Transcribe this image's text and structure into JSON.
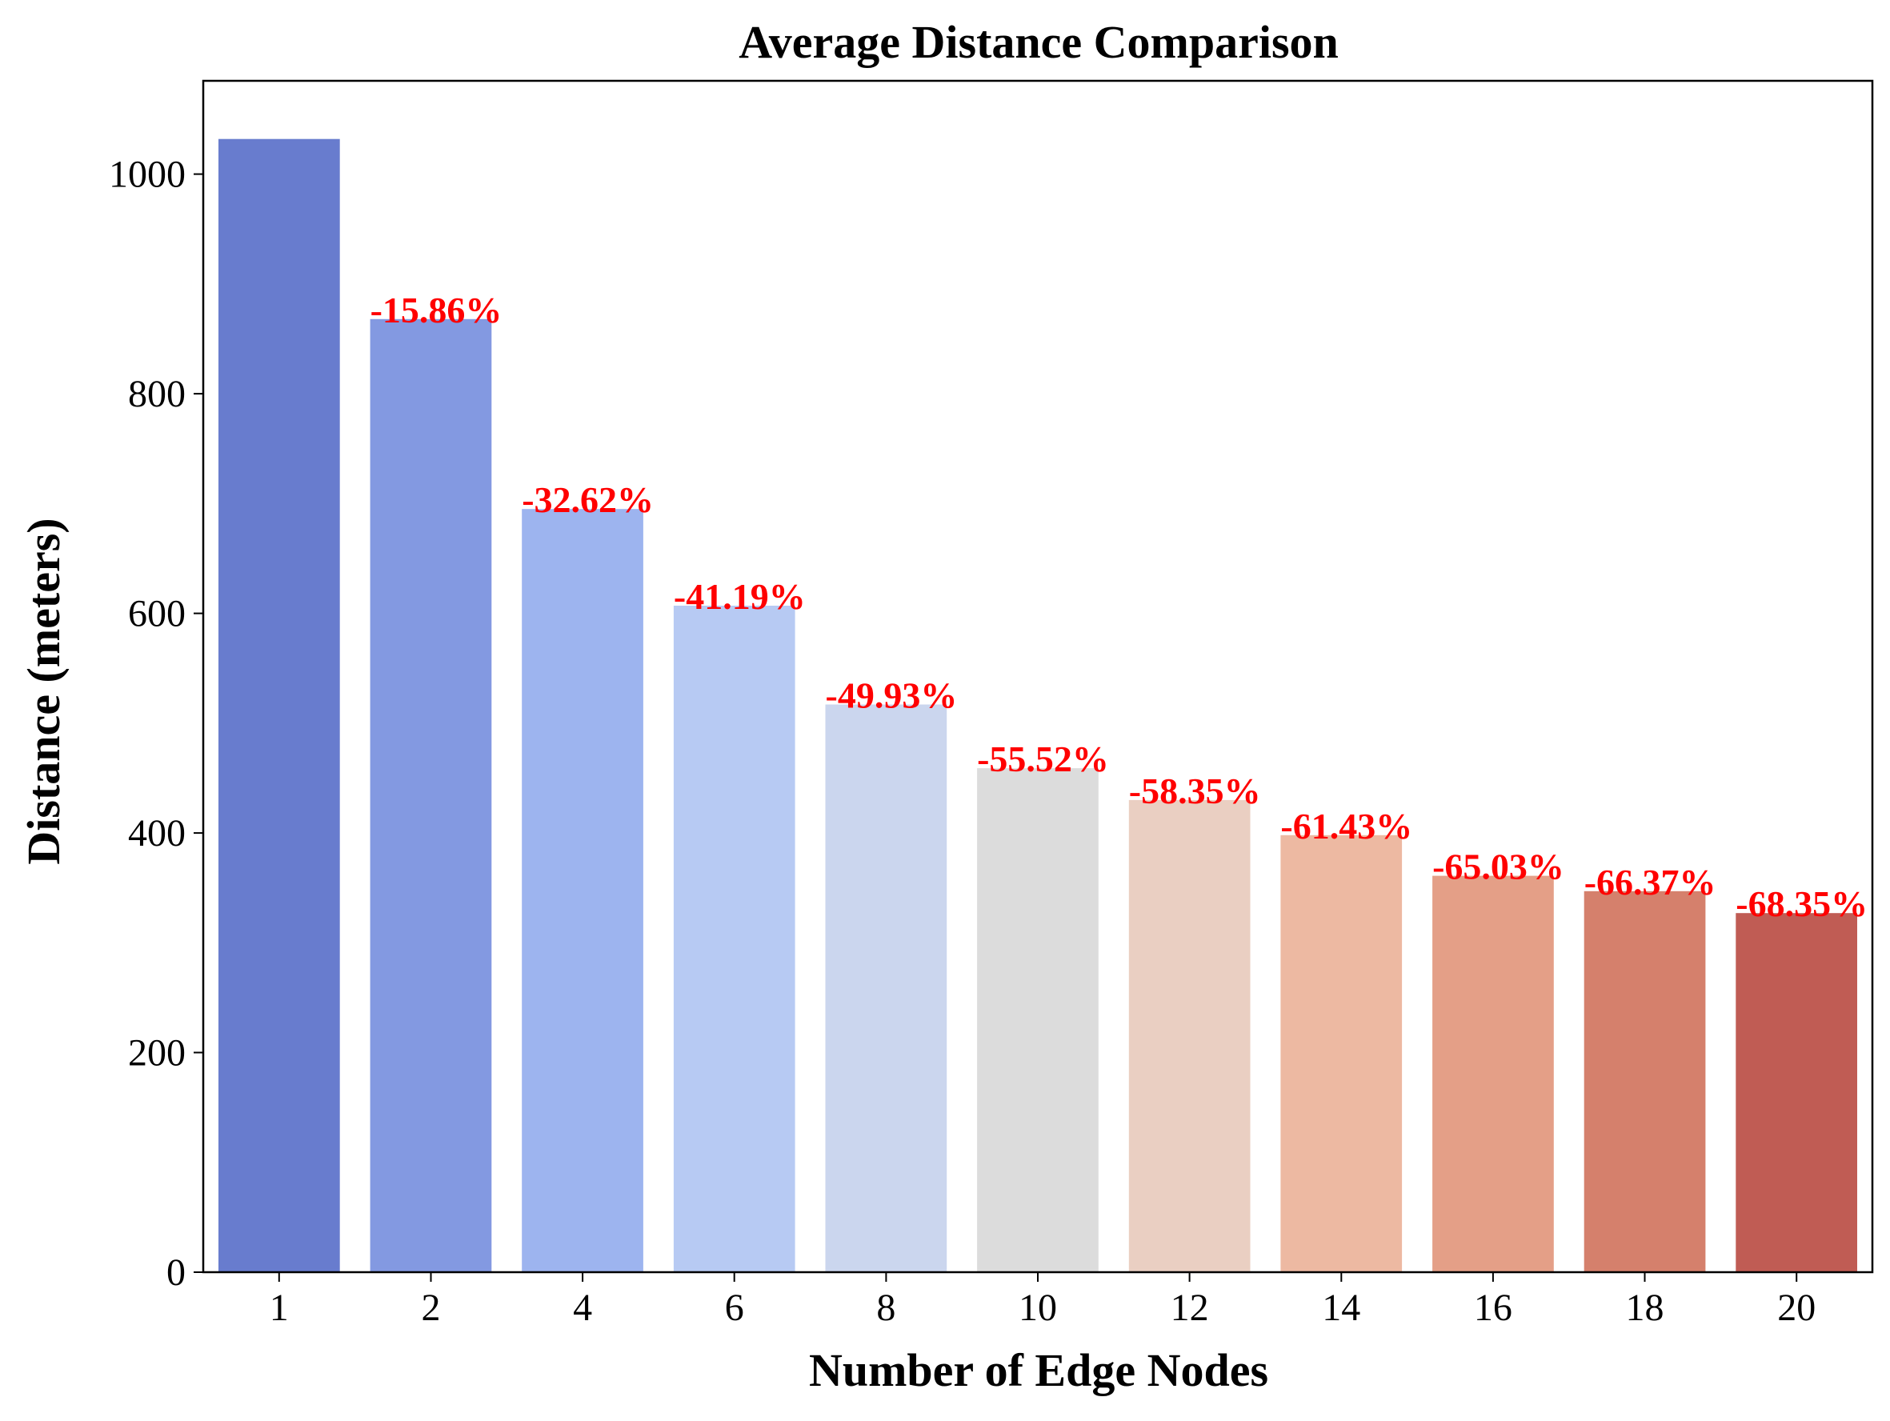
{
  "chart_data": {
    "type": "bar",
    "title": "Average Distance Comparison",
    "xlabel": "Number of Edge Nodes",
    "ylabel": "Distance (meters)",
    "categories": [
      "1",
      "2",
      "4",
      "6",
      "8",
      "10",
      "12",
      "14",
      "16",
      "18",
      "20"
    ],
    "values": [
      1032,
      868,
      695,
      607,
      517,
      459,
      430,
      398,
      361,
      347,
      327
    ],
    "annotations": [
      "",
      "-15.86%",
      "-32.62%",
      "-41.19%",
      "-49.93%",
      "-55.52%",
      "-58.35%",
      "-61.43%",
      "-65.03%",
      "-66.37%",
      "-68.35%"
    ],
    "annotation_color": "#ff0000",
    "bar_colors": [
      "#687cce",
      "#8399e1",
      "#9db4ef",
      "#b7caf3",
      "#cbd6ee",
      "#dcdcdc",
      "#eacfc2",
      "#edb9a2",
      "#e49f87",
      "#d5806c",
      "#c05c54"
    ],
    "ylim": [
      0,
      1085
    ],
    "yticks": [
      0,
      200,
      400,
      600,
      800,
      1000
    ],
    "grid": false
  }
}
